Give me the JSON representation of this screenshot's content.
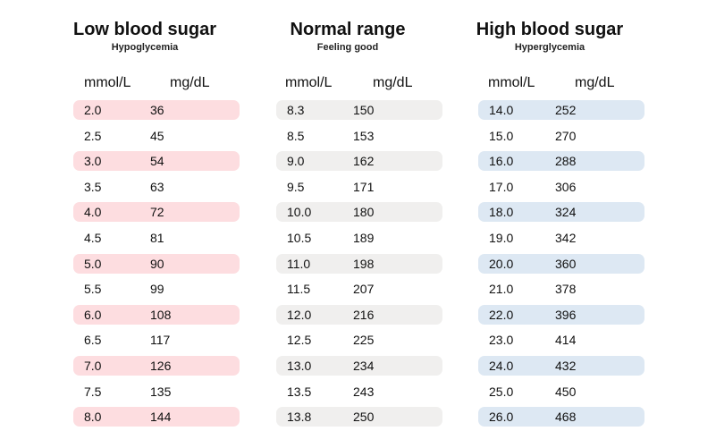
{
  "chart_data": {
    "type": "table",
    "columns": [
      "mmol/L",
      "mg/dL"
    ],
    "panels": [
      {
        "title": "Low blood sugar",
        "subtitle": "Hypoglycemia",
        "stripe_color": "#fddde0",
        "rows": [
          [
            "2.0",
            "36"
          ],
          [
            "2.5",
            "45"
          ],
          [
            "3.0",
            "54"
          ],
          [
            "3.5",
            "63"
          ],
          [
            "4.0",
            "72"
          ],
          [
            "4.5",
            "81"
          ],
          [
            "5.0",
            "90"
          ],
          [
            "5.5",
            "99"
          ],
          [
            "6.0",
            "108"
          ],
          [
            "6.5",
            "117"
          ],
          [
            "7.0",
            "126"
          ],
          [
            "7.5",
            "135"
          ],
          [
            "8.0",
            "144"
          ]
        ]
      },
      {
        "title": "Normal range",
        "subtitle": "Feeling good",
        "stripe_color": "#f0efee",
        "rows": [
          [
            "8.3",
            "150"
          ],
          [
            "8.5",
            "153"
          ],
          [
            "9.0",
            "162"
          ],
          [
            "9.5",
            "171"
          ],
          [
            "10.0",
            "180"
          ],
          [
            "10.5",
            "189"
          ],
          [
            "11.0",
            "198"
          ],
          [
            "11.5",
            "207"
          ],
          [
            "12.0",
            "216"
          ],
          [
            "12.5",
            "225"
          ],
          [
            "13.0",
            "234"
          ],
          [
            "13.5",
            "243"
          ],
          [
            "13.8",
            "250"
          ]
        ]
      },
      {
        "title": "High blood sugar",
        "subtitle": "Hyperglycemia",
        "stripe_color": "#dde8f3",
        "rows": [
          [
            "14.0",
            "252"
          ],
          [
            "15.0",
            "270"
          ],
          [
            "16.0",
            "288"
          ],
          [
            "17.0",
            "306"
          ],
          [
            "18.0",
            "324"
          ],
          [
            "19.0",
            "342"
          ],
          [
            "20.0",
            "360"
          ],
          [
            "21.0",
            "378"
          ],
          [
            "22.0",
            "396"
          ],
          [
            "23.0",
            "414"
          ],
          [
            "24.0",
            "432"
          ],
          [
            "25.0",
            "450"
          ],
          [
            "26.0",
            "468"
          ]
        ]
      }
    ]
  }
}
